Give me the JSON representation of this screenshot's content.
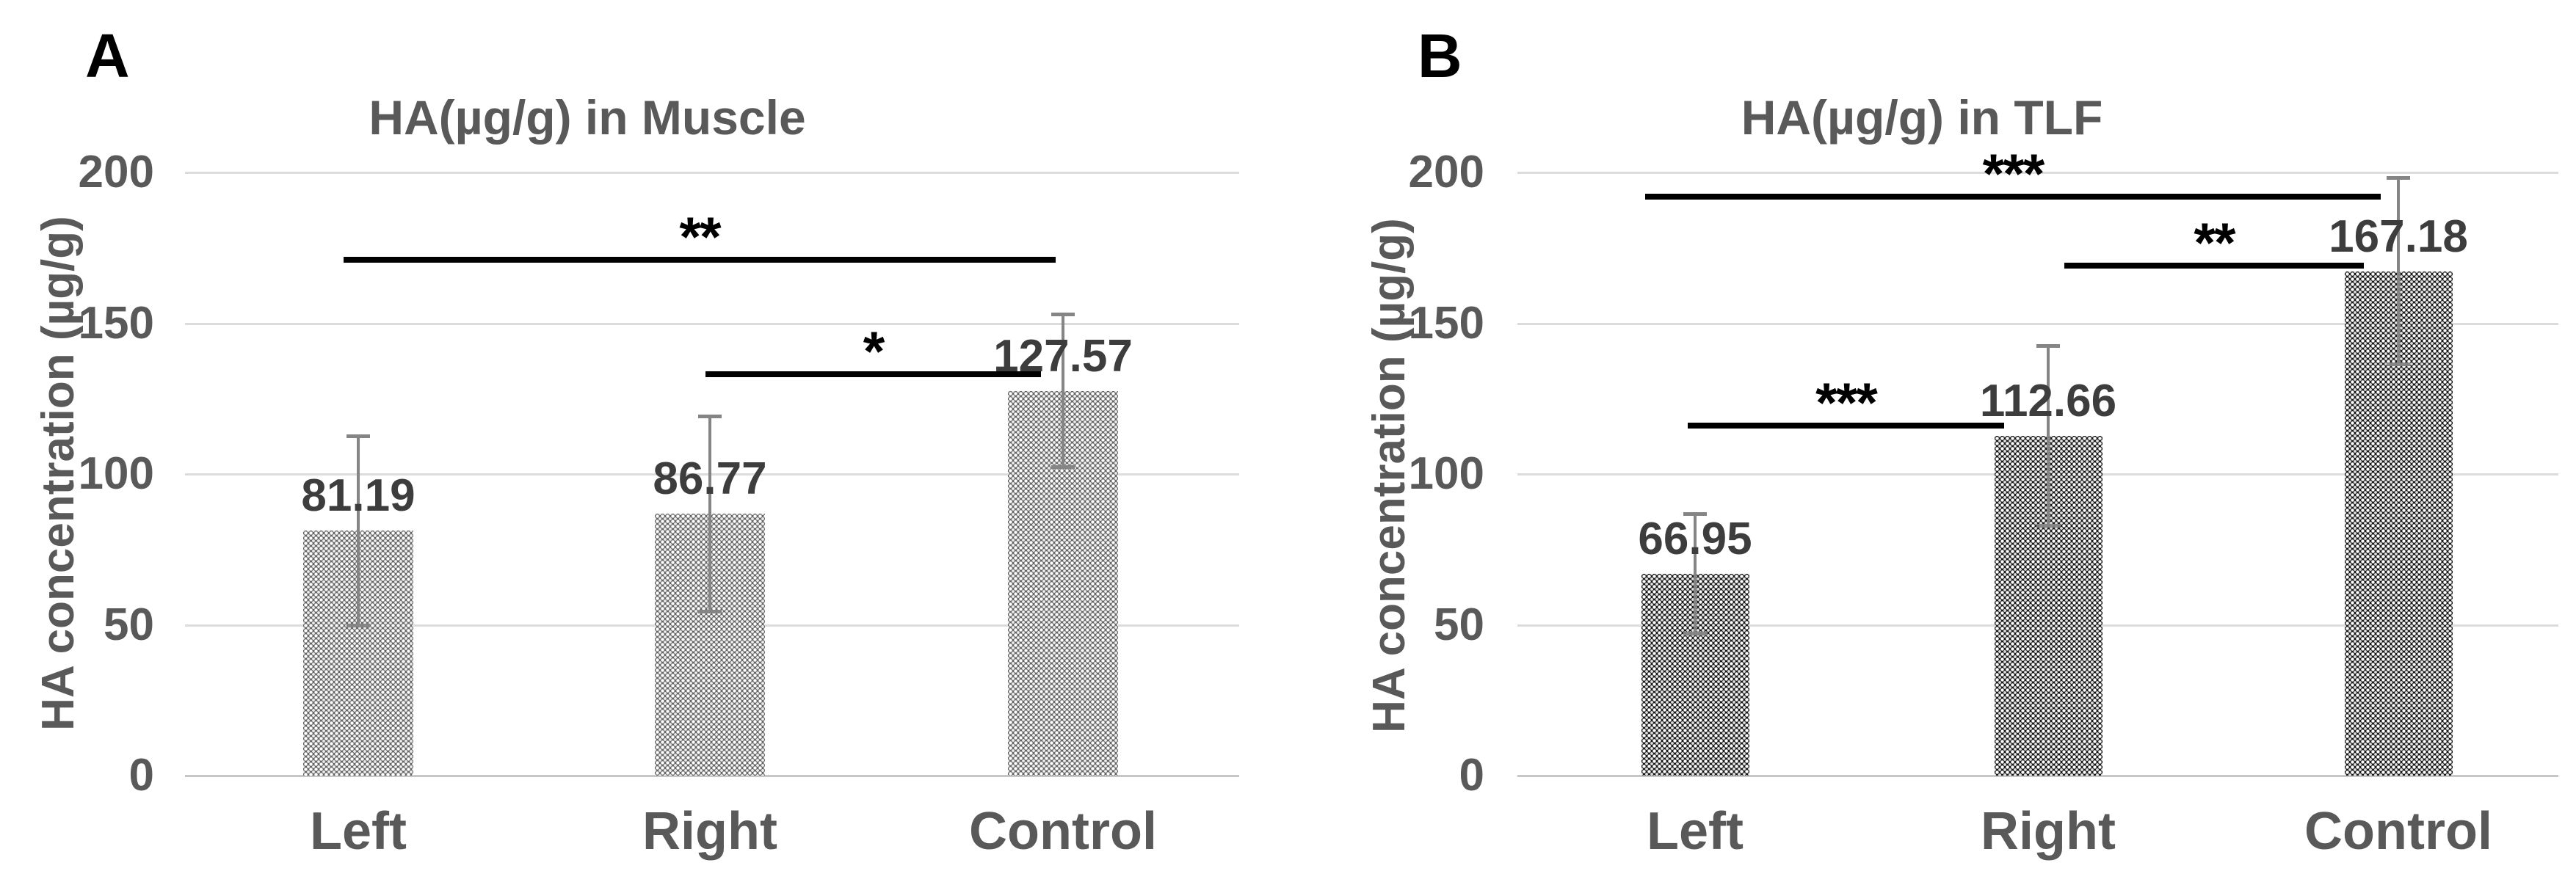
{
  "figure": {
    "background": "#ffffff",
    "y_axis_label": "HA concentration (µg/g)"
  },
  "colors": {
    "title_text": "#595959",
    "tick_text": "#595959",
    "category_text": "#595959",
    "value_text": "#3d3d3d",
    "panel_letter": "#000000",
    "gridline": "#dcdcdc",
    "baseline": "#c6c6c6",
    "significance": "#000000",
    "error_bar": "#858585",
    "bar_pattern_a_base": "#666666",
    "bar_pattern_b_base": "#181818",
    "bar_pattern_dot": "#ffffff"
  },
  "chart_data": [
    {
      "type": "bar",
      "panel_letter": "A",
      "title": "HA(µg/g) in Muscle",
      "ylabel": "HA concentration (µg/g)",
      "categories": [
        "Left",
        "Right",
        "Control"
      ],
      "values": [
        81.19,
        86.77,
        127.57
      ],
      "value_labels": [
        "81.19",
        "86.77",
        "127.57"
      ],
      "errors": [
        31.5,
        32.5,
        25.5
      ],
      "ylim": [
        0,
        200
      ],
      "yticks": [
        0,
        50,
        100,
        150,
        200
      ],
      "grid": true,
      "legend": "none",
      "bar_fill": "dotted-pattern-gray",
      "significance": [
        {
          "from": "Left",
          "to": "Control",
          "stars": "**",
          "line_y": 171
        },
        {
          "from": "Right",
          "to": "Control",
          "stars": "*",
          "line_y": 133
        }
      ]
    },
    {
      "type": "bar",
      "panel_letter": "B",
      "title": "HA(µg/g) in TLF",
      "ylabel": "HA concentration (µg/g)",
      "categories": [
        "Left",
        "Right",
        "Control"
      ],
      "values": [
        66.95,
        112.66,
        167.18
      ],
      "value_labels": [
        "66.95",
        "112.66",
        "167.18"
      ],
      "errors": [
        20,
        30,
        31
      ],
      "ylim": [
        0,
        200
      ],
      "yticks": [
        0,
        50,
        100,
        150,
        200
      ],
      "grid": true,
      "legend": "none",
      "bar_fill": "dotted-pattern-black",
      "significance": [
        {
          "from": "Left",
          "to": "Control",
          "stars": "***",
          "line_y": 192
        },
        {
          "from": "Right",
          "to": "Control",
          "stars": "**",
          "line_y": 169
        },
        {
          "from": "Left",
          "to": "Right",
          "stars": "***",
          "line_y": 116
        }
      ]
    }
  ]
}
